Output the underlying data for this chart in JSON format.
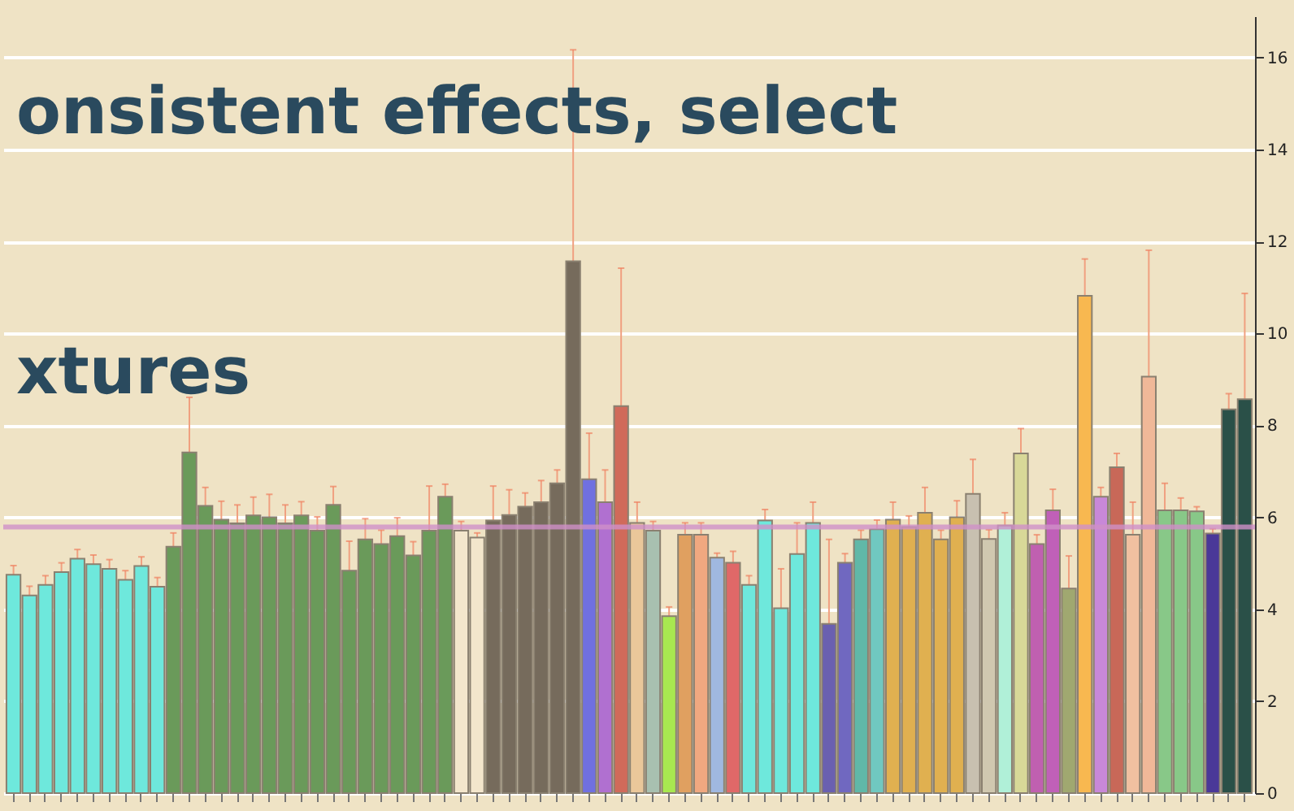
{
  "chart_data": {
    "type": "bar",
    "annotations": [
      "onsistent effects, select",
      "xtures"
    ],
    "categories": [
      null,
      null,
      null,
      null,
      null,
      null,
      null,
      null,
      null,
      null,
      null,
      null,
      null,
      null,
      null,
      null,
      null,
      null,
      null,
      null,
      null,
      null,
      null,
      null,
      null,
      null,
      null,
      null,
      null,
      null,
      null,
      null,
      null,
      null,
      null,
      null,
      null,
      null,
      null,
      null,
      null,
      null,
      null,
      null,
      null,
      null,
      null,
      null,
      null,
      null,
      null,
      null,
      null,
      null,
      null,
      null,
      null,
      null,
      null,
      null,
      null,
      null,
      null,
      null,
      null,
      null,
      null,
      null,
      null,
      null,
      null,
      null,
      null,
      null,
      null,
      null,
      null,
      null
    ],
    "values": [
      4.75,
      4.3,
      4.53,
      4.81,
      5.1,
      4.98,
      4.88,
      4.64,
      4.94,
      4.49,
      5.36,
      7.41,
      6.25,
      5.95,
      5.87,
      6.04,
      6.0,
      5.87,
      6.04,
      5.71,
      6.27,
      4.84,
      5.52,
      5.42,
      5.59,
      5.17,
      5.71,
      6.45,
      5.71,
      5.56,
      5.93,
      6.05,
      6.23,
      6.33,
      6.74,
      11.57,
      6.83,
      6.33,
      8.42,
      5.88,
      5.71,
      3.85,
      5.62,
      5.62,
      5.12,
      5.01,
      4.53,
      5.93,
      4.02,
      5.2,
      5.88,
      3.68,
      5.01,
      5.52,
      5.74,
      5.95,
      5.79,
      6.1,
      5.52,
      6.0,
      6.51,
      5.53,
      5.82,
      7.39,
      5.42,
      6.15,
      4.45,
      10.82,
      6.45,
      7.09,
      5.62,
      9.06,
      6.15,
      6.15,
      6.13,
      5.65,
      8.35,
      8.57
    ],
    "errors": [
      0.2,
      0.2,
      0.2,
      0.2,
      0.2,
      0.2,
      0.2,
      0.2,
      0.2,
      0.2,
      0.3,
      1.2,
      0.4,
      0.4,
      0.4,
      0.4,
      0.5,
      0.4,
      0.3,
      0.3,
      0.4,
      0.64,
      0.45,
      0.3,
      0.4,
      0.3,
      0.97,
      0.27,
      0.2,
      0.1,
      0.75,
      0.55,
      0.3,
      0.47,
      0.29,
      4.6,
      1.0,
      0.7,
      3.0,
      0.45,
      0.2,
      0.2,
      0.26,
      0.26,
      0.1,
      0.25,
      0.2,
      0.24,
      0.86,
      0.68,
      0.45,
      1.84,
      0.2,
      0.2,
      0.2,
      0.38,
      0.24,
      0.55,
      0.2,
      0.36,
      0.75,
      0.2,
      0.28,
      0.54,
      0.2,
      0.46,
      0.71,
      0.8,
      0.2,
      0.3,
      0.71,
      2.75,
      0.59,
      0.27,
      0.1,
      0.1,
      0.34,
      2.3
    ],
    "colors": [
      "#6ee8dc",
      "#6ee8dc",
      "#6ee8dc",
      "#6ee8dc",
      "#6ee8dc",
      "#6ee8dc",
      "#6ee8dc",
      "#6ee8dc",
      "#6ee8dc",
      "#6ee8dc",
      "#6a9a5a",
      "#6a9a5a",
      "#6a9a5a",
      "#6a9a5a",
      "#6a9a5a",
      "#6a9a5a",
      "#6a9a5a",
      "#6a9a5a",
      "#6a9a5a",
      "#6a9a5a",
      "#6a9a5a",
      "#6a9a5a",
      "#6a9a5a",
      "#6a9a5a",
      "#6a9a5a",
      "#6a9a5a",
      "#6a9a5a",
      "#6a9a5a",
      "#f3e6cc",
      "#f3e6cc",
      "#766b5c",
      "#766b5c",
      "#766b5c",
      "#766b5c",
      "#766b5c",
      "#766b5c",
      "#7070e0",
      "#b070d0",
      "#d06a5a",
      "#eac79a",
      "#a8c0b0",
      "#a8e850",
      "#e0a060",
      "#f0a880",
      "#a0b8e0",
      "#e06868",
      "#6ee8dc",
      "#6ee8dc",
      "#6ee8dc",
      "#6ee8dc",
      "#6ee8dc",
      "#6a60b0",
      "#7068c0",
      "#60b8a8",
      "#70c8c0",
      "#e0b050",
      "#e0b050",
      "#e0b050",
      "#e0b050",
      "#e0b050",
      "#c8c0b0",
      "#d0c8b0",
      "#b0f0d8",
      "#d8d898",
      "#c060b0",
      "#c060b8",
      "#a0a870",
      "#f8b850",
      "#c888d8",
      "#c86858",
      "#f0c0a0",
      "#f0b898",
      "#88c888",
      "#88c888",
      "#88c888",
      "#4a3898",
      "#2a5048",
      "#2a5048"
    ],
    "ylim": [
      0,
      16.9
    ],
    "yticks": [
      0,
      2,
      4,
      6,
      8,
      10,
      12,
      14,
      16
    ],
    "grid": "y",
    "ref_lines": [
      {
        "axis": "y",
        "value": 5.79,
        "color": "#d090c8"
      }
    ]
  }
}
